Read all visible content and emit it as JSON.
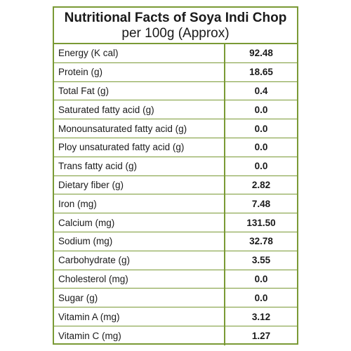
{
  "header": {
    "title": "Nutritional Facts of Soya Indi Chop",
    "subtitle": "per 100g (Approx)"
  },
  "rows": [
    {
      "label": "Energy (K cal)",
      "value": "92.48"
    },
    {
      "label": "Protein (g)",
      "value": "18.65"
    },
    {
      "label": "Total Fat (g)",
      "value": "0.4"
    },
    {
      "label": "Saturated fatty acid (g)",
      "value": "0.0"
    },
    {
      "label": "Monounsaturated fatty acid (g)",
      "value": "0.0"
    },
    {
      "label": "Ploy unsaturated fatty acid (g)",
      "value": "0.0"
    },
    {
      "label": "Trans fatty acid (g)",
      "value": "0.0"
    },
    {
      "label": "Dietary fiber (g)",
      "value": "2.82"
    },
    {
      "label": "Iron (mg)",
      "value": "7.48"
    },
    {
      "label": "Calcium (mg)",
      "value": "131.50"
    },
    {
      "label": "Sodium (mg)",
      "value": "32.78"
    },
    {
      "label": "Carbohydrate (g)",
      "value": "3.55"
    },
    {
      "label": "Cholesterol (mg)",
      "value": "0.0"
    },
    {
      "label": "Sugar (g)",
      "value": "0.0"
    },
    {
      "label": "Vitamin A (mg)",
      "value": "3.12"
    },
    {
      "label": "Vitamin C (mg)",
      "value": "1.27"
    }
  ],
  "colors": {
    "border": "#7a9a35",
    "text": "#1a1a1a",
    "background": "#ffffff"
  }
}
